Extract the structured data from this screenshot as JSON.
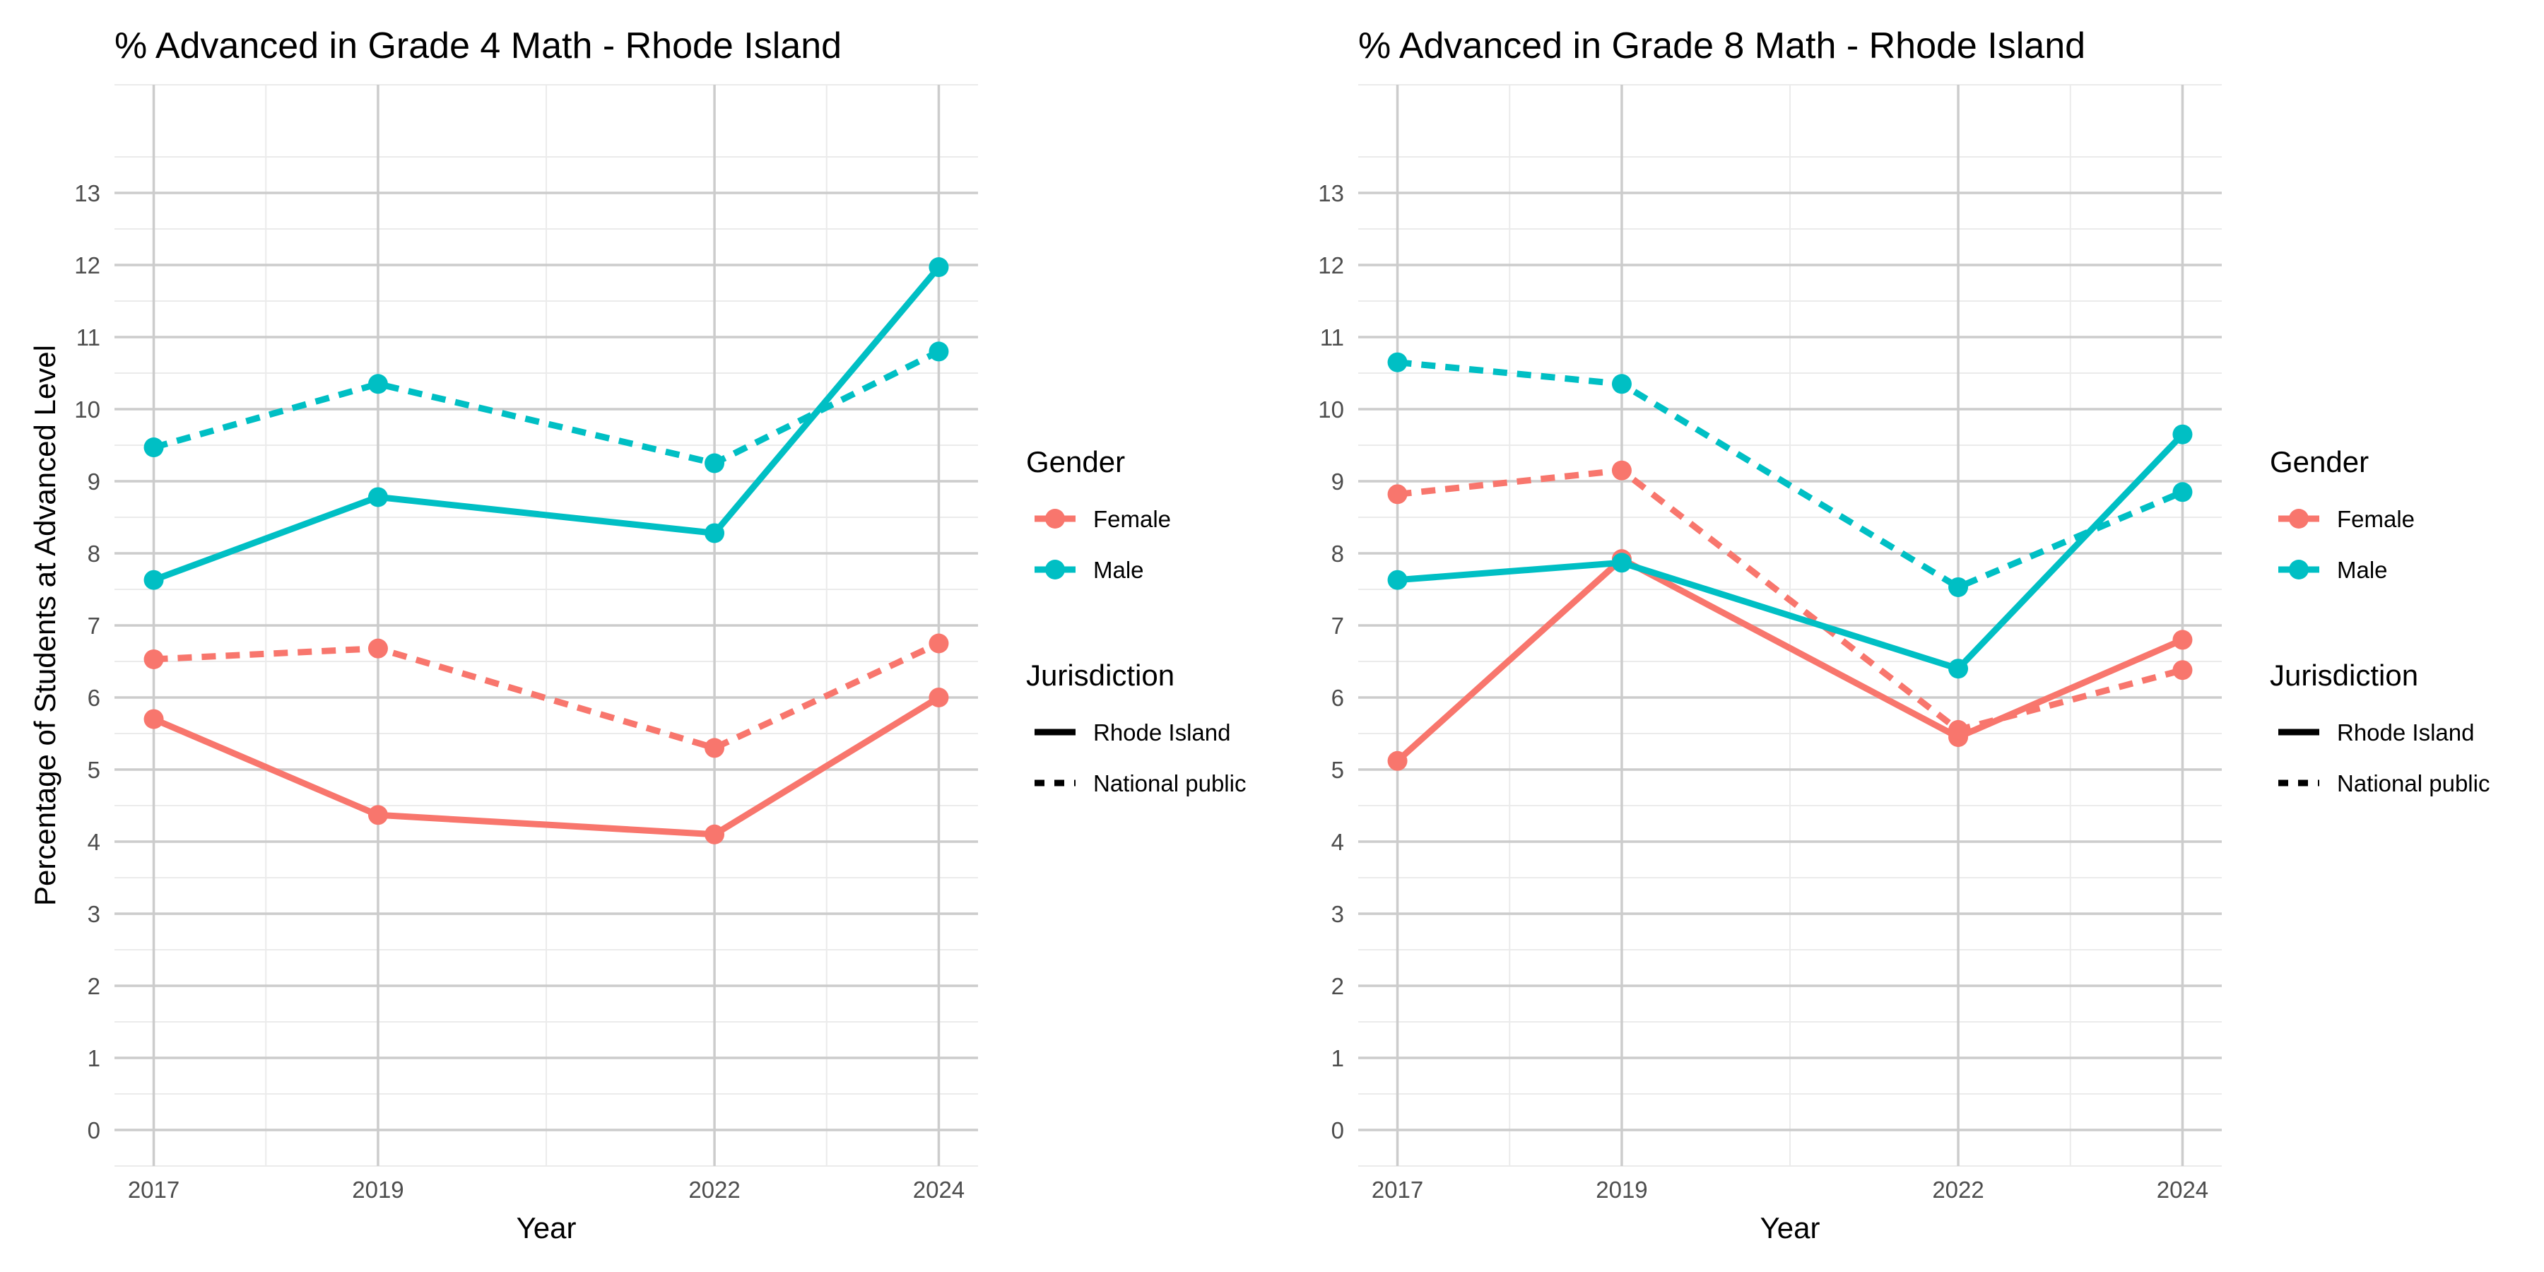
{
  "chart_data": [
    {
      "type": "line",
      "title": "% Advanced in Grade 4 Math - Rhode Island",
      "xlabel": "Year",
      "ylabel": "Percentage of Students at Advanced Level",
      "x": [
        2017,
        2019,
        2022,
        2024
      ],
      "ylim": [
        -0.5,
        14.5
      ],
      "xlim": [
        2016.65,
        2024.35
      ],
      "y_ticks": [
        0,
        1,
        2,
        3,
        4,
        5,
        6,
        7,
        8,
        9,
        10,
        11,
        12,
        13
      ],
      "grid": true,
      "legend_position": "right",
      "series": [
        {
          "gender": "Female",
          "jurisdiction": "Rhode Island",
          "values": [
            5.7,
            4.37,
            4.1,
            6.0
          ]
        },
        {
          "gender": "Female",
          "jurisdiction": "National public",
          "values": [
            6.53,
            6.68,
            5.3,
            6.75
          ]
        },
        {
          "gender": "Male",
          "jurisdiction": "Rhode Island",
          "values": [
            7.63,
            8.78,
            8.28,
            11.97
          ]
        },
        {
          "gender": "Male",
          "jurisdiction": "National public",
          "values": [
            9.47,
            10.35,
            9.25,
            10.8
          ]
        }
      ]
    },
    {
      "type": "line",
      "title": "% Advanced in Grade 8 Math - Rhode Island",
      "xlabel": "Year",
      "ylabel": "",
      "x": [
        2017,
        2019,
        2022,
        2024
      ],
      "ylim": [
        -0.5,
        14.5
      ],
      "xlim": [
        2016.65,
        2024.35
      ],
      "y_ticks": [
        0,
        1,
        2,
        3,
        4,
        5,
        6,
        7,
        8,
        9,
        10,
        11,
        12,
        13
      ],
      "grid": true,
      "legend_position": "right",
      "series": [
        {
          "gender": "Female",
          "jurisdiction": "Rhode Island",
          "values": [
            5.12,
            7.92,
            5.45,
            6.8
          ]
        },
        {
          "gender": "Female",
          "jurisdiction": "National public",
          "values": [
            8.82,
            9.15,
            5.55,
            6.38
          ]
        },
        {
          "gender": "Male",
          "jurisdiction": "Rhode Island",
          "values": [
            7.63,
            7.87,
            6.4,
            9.65
          ]
        },
        {
          "gender": "Male",
          "jurisdiction": "National public",
          "values": [
            10.65,
            10.35,
            7.53,
            8.85
          ]
        }
      ]
    }
  ],
  "legend": {
    "gender_title": "Gender",
    "gender_items": [
      {
        "label": "Female",
        "color": "#F8766D"
      },
      {
        "label": "Male",
        "color": "#00BFC4"
      }
    ],
    "jurisdiction_title": "Jurisdiction",
    "jurisdiction_items": [
      {
        "label": "Rhode Island",
        "style": "solid"
      },
      {
        "label": "National public",
        "style": "dashed"
      }
    ]
  },
  "colors": {
    "Female": "#F8766D",
    "Male": "#00BFC4"
  }
}
